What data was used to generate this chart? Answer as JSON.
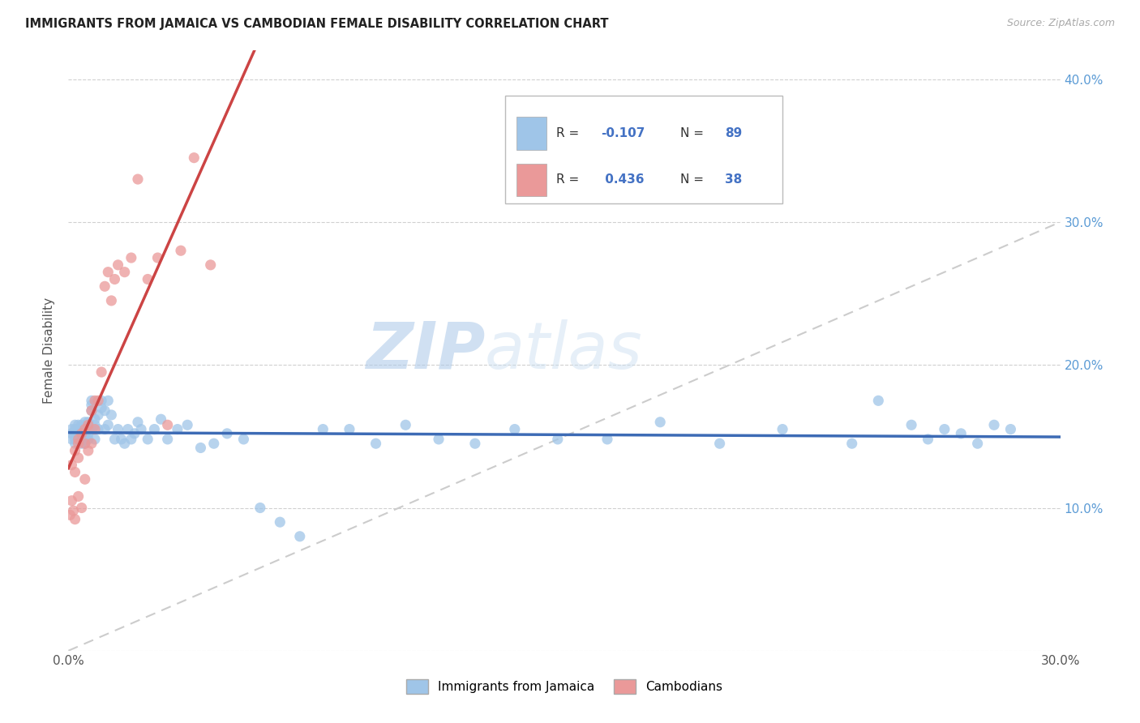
{
  "title": "IMMIGRANTS FROM JAMAICA VS CAMBODIAN FEMALE DISABILITY CORRELATION CHART",
  "source": "Source: ZipAtlas.com",
  "ylabel": "Female Disability",
  "x_min": 0.0,
  "x_max": 0.3,
  "y_min": 0.0,
  "y_max": 0.42,
  "x_ticks": [
    0.0,
    0.05,
    0.1,
    0.15,
    0.2,
    0.25,
    0.3
  ],
  "y_ticks": [
    0.0,
    0.1,
    0.2,
    0.3,
    0.4
  ],
  "y_tick_labels_right": [
    "",
    "10.0%",
    "20.0%",
    "30.0%",
    "40.0%"
  ],
  "color_blue": "#9fc5e8",
  "color_pink": "#ea9999",
  "color_blue_line": "#3d6bb5",
  "color_pink_line": "#cc4444",
  "color_diag_line": "#cccccc",
  "watermark_zip": "ZIP",
  "watermark_atlas": "atlas",
  "jamaica_x": [
    0.001,
    0.001,
    0.001,
    0.002,
    0.002,
    0.002,
    0.002,
    0.002,
    0.003,
    0.003,
    0.003,
    0.003,
    0.003,
    0.003,
    0.004,
    0.004,
    0.004,
    0.004,
    0.004,
    0.004,
    0.005,
    0.005,
    0.005,
    0.005,
    0.005,
    0.005,
    0.006,
    0.006,
    0.006,
    0.006,
    0.007,
    0.007,
    0.007,
    0.007,
    0.008,
    0.008,
    0.008,
    0.009,
    0.009,
    0.01,
    0.01,
    0.011,
    0.011,
    0.012,
    0.012,
    0.013,
    0.014,
    0.015,
    0.016,
    0.017,
    0.018,
    0.019,
    0.02,
    0.021,
    0.022,
    0.024,
    0.026,
    0.028,
    0.03,
    0.033,
    0.036,
    0.04,
    0.044,
    0.048,
    0.053,
    0.058,
    0.064,
    0.07,
    0.077,
    0.085,
    0.093,
    0.102,
    0.112,
    0.123,
    0.135,
    0.148,
    0.163,
    0.179,
    0.197,
    0.216,
    0.237,
    0.245,
    0.255,
    0.26,
    0.265,
    0.27,
    0.275,
    0.28,
    0.285
  ],
  "jamaica_y": [
    0.155,
    0.148,
    0.152,
    0.148,
    0.152,
    0.155,
    0.158,
    0.145,
    0.148,
    0.15,
    0.155,
    0.152,
    0.148,
    0.158,
    0.15,
    0.148,
    0.153,
    0.155,
    0.158,
    0.145,
    0.15,
    0.148,
    0.152,
    0.155,
    0.16,
    0.145,
    0.152,
    0.155,
    0.148,
    0.16,
    0.175,
    0.168,
    0.172,
    0.155,
    0.162,
    0.158,
    0.148,
    0.165,
    0.155,
    0.17,
    0.175,
    0.168,
    0.155,
    0.175,
    0.158,
    0.165,
    0.148,
    0.155,
    0.148,
    0.145,
    0.155,
    0.148,
    0.152,
    0.16,
    0.155,
    0.148,
    0.155,
    0.162,
    0.148,
    0.155,
    0.158,
    0.142,
    0.145,
    0.152,
    0.148,
    0.1,
    0.09,
    0.08,
    0.155,
    0.155,
    0.145,
    0.158,
    0.148,
    0.145,
    0.155,
    0.148,
    0.148,
    0.16,
    0.145,
    0.155,
    0.145,
    0.175,
    0.158,
    0.148,
    0.155,
    0.152,
    0.145,
    0.158,
    0.155
  ],
  "cambodian_x": [
    0.0005,
    0.001,
    0.001,
    0.0015,
    0.002,
    0.002,
    0.002,
    0.003,
    0.003,
    0.003,
    0.003,
    0.004,
    0.004,
    0.005,
    0.005,
    0.005,
    0.006,
    0.006,
    0.007,
    0.007,
    0.008,
    0.008,
    0.009,
    0.01,
    0.011,
    0.012,
    0.013,
    0.014,
    0.015,
    0.017,
    0.019,
    0.021,
    0.024,
    0.027,
    0.03,
    0.034,
    0.038,
    0.043
  ],
  "cambodian_y": [
    0.095,
    0.105,
    0.13,
    0.098,
    0.14,
    0.125,
    0.092,
    0.135,
    0.148,
    0.145,
    0.108,
    0.152,
    0.1,
    0.155,
    0.145,
    0.12,
    0.158,
    0.14,
    0.145,
    0.168,
    0.175,
    0.155,
    0.175,
    0.195,
    0.255,
    0.265,
    0.245,
    0.26,
    0.27,
    0.265,
    0.275,
    0.33,
    0.26,
    0.275,
    0.158,
    0.28,
    0.345,
    0.27
  ]
}
